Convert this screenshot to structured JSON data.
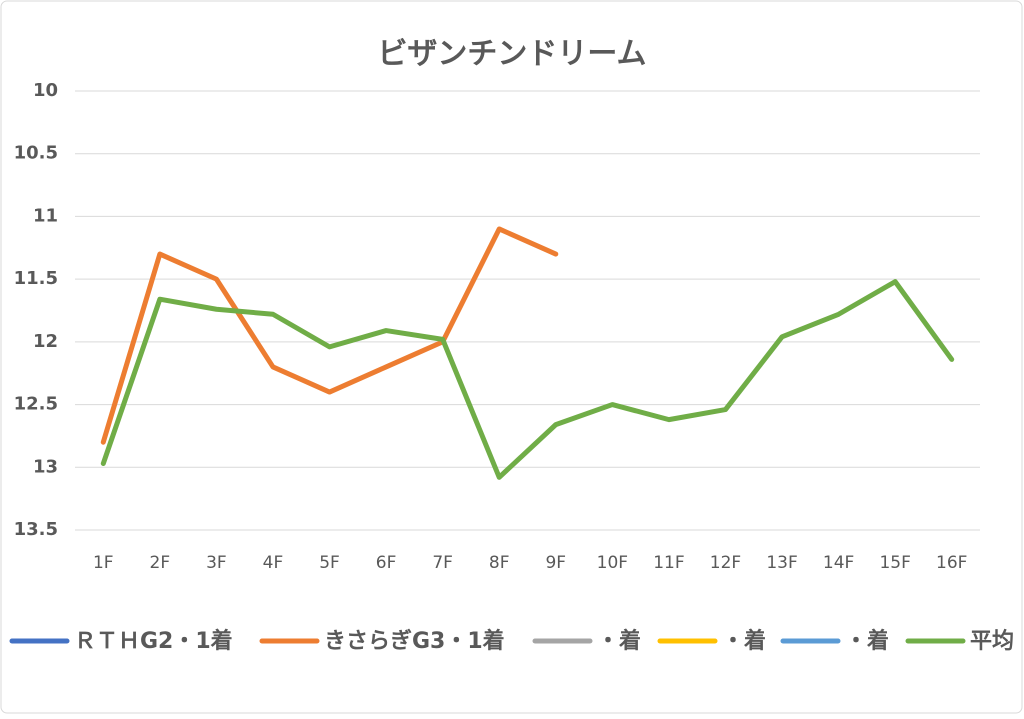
{
  "chart_data": {
    "type": "line",
    "title": "ビザンチンドリーム",
    "categories": [
      "1F",
      "2F",
      "3F",
      "4F",
      "5F",
      "6F",
      "7F",
      "8F",
      "9F",
      "10F",
      "11F",
      "12F",
      "13F",
      "14F",
      "15F",
      "16F"
    ],
    "series": [
      {
        "name": "ＲＴＨG2・1着",
        "color": "#4472c4",
        "values": [
          null,
          null,
          null,
          null,
          null,
          null,
          null,
          null,
          null,
          null,
          null,
          null,
          null,
          null,
          null,
          null
        ]
      },
      {
        "name": "きさらぎG3・1着",
        "color": "#ed7d31",
        "values": [
          12.8,
          11.3,
          11.5,
          12.2,
          12.4,
          12.2,
          12.0,
          11.1,
          11.3,
          null,
          null,
          null,
          null,
          null,
          null,
          null
        ]
      },
      {
        "name": "・着",
        "color": "#a5a5a5",
        "values": [
          null,
          null,
          null,
          null,
          null,
          null,
          null,
          null,
          null,
          null,
          null,
          null,
          null,
          null,
          null,
          null
        ]
      },
      {
        "name": "・着",
        "color": "#ffc000",
        "values": [
          null,
          null,
          null,
          null,
          null,
          null,
          null,
          null,
          null,
          null,
          null,
          null,
          null,
          null,
          null,
          null
        ]
      },
      {
        "name": "・着",
        "color": "#5b9bd5",
        "values": [
          null,
          null,
          null,
          null,
          null,
          null,
          null,
          null,
          null,
          null,
          null,
          null,
          null,
          null,
          null,
          null
        ]
      },
      {
        "name": "平均",
        "color": "#70ad47",
        "values": [
          12.97,
          11.66,
          11.74,
          11.78,
          12.04,
          11.91,
          11.98,
          13.08,
          12.66,
          12.5,
          12.62,
          12.54,
          11.96,
          11.78,
          11.52,
          12.14
        ]
      }
    ],
    "ylim": [
      10,
      13.5
    ],
    "y_reversed": true,
    "yticks": [
      10,
      10.5,
      11,
      11.5,
      12,
      12.5,
      13,
      13.5
    ],
    "grid": true,
    "legend": "bottom"
  }
}
